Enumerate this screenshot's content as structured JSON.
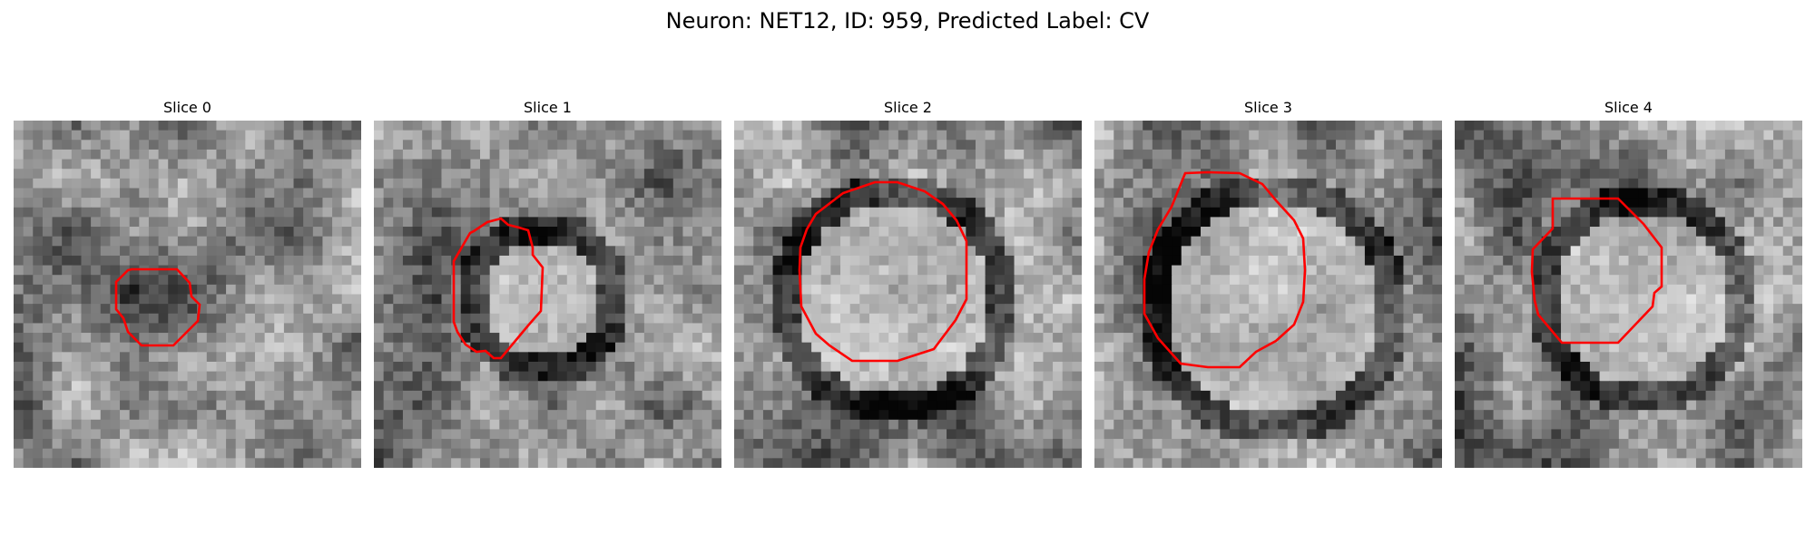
{
  "figure": {
    "title": "Neuron: NET12, ID: 959, Predicted Label: CV",
    "contour_color": "#ff0000",
    "colormap": "grayscale"
  },
  "panels": [
    {
      "title": "Slice 0",
      "blob": {
        "cx": 18,
        "cy": 18,
        "r": 8,
        "contrast": "dark"
      }
    },
    {
      "title": "Slice 1",
      "blob": {
        "cx": 17,
        "cy": 18,
        "r": 7,
        "contrast": "bright"
      }
    },
    {
      "title": "Slice 2",
      "blob": {
        "cx": 16,
        "cy": 18,
        "r": 11,
        "contrast": "bright"
      }
    },
    {
      "title": "Slice 3",
      "blob": {
        "cx": 18,
        "cy": 19,
        "r": 12,
        "contrast": "bright"
      }
    },
    {
      "title": "Slice 4",
      "blob": {
        "cx": 19,
        "cy": 18,
        "r": 10,
        "contrast": "bright"
      }
    }
  ]
}
